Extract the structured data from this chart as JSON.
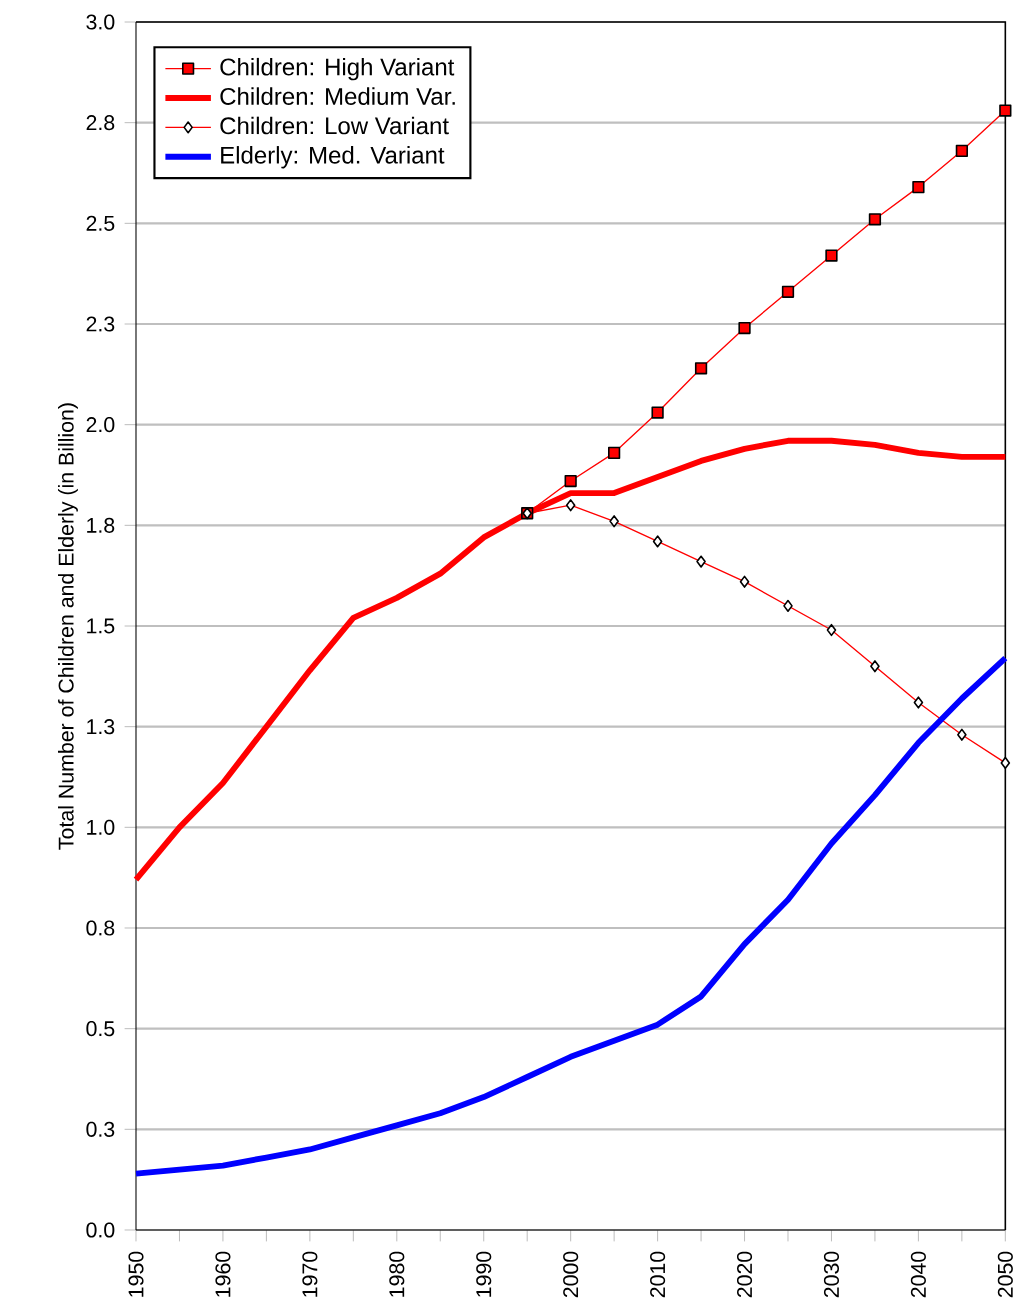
{
  "chart_data": {
    "type": "line",
    "ylabel": "Total Number of Children and Elderly (in Billion)",
    "xlim": [
      1950,
      2050
    ],
    "ylim": [
      0,
      3
    ],
    "xticks": [
      1950,
      {
        "value": 1955,
        "label": null
      },
      1960,
      {
        "value": 1965,
        "label": null
      },
      1970,
      {
        "value": 1975,
        "label": null
      },
      1980,
      {
        "value": 1985,
        "label": null
      },
      1990,
      {
        "value": 1995,
        "label": null
      },
      2000,
      {
        "value": 2005,
        "label": null
      },
      2010,
      {
        "value": 2015,
        "label": null
      },
      2020,
      {
        "value": 2025,
        "label": null
      },
      2030,
      {
        "value": 2035,
        "label": null
      },
      2040,
      {
        "value": 2045,
        "label": null
      },
      2050
    ],
    "yticks": [
      {
        "value": 0,
        "label": "0.0"
      },
      {
        "value": 0.25,
        "label": "0.3"
      },
      {
        "value": 0.5,
        "label": "0.5"
      },
      {
        "value": 0.75,
        "label": "0.8"
      },
      {
        "value": 1.0,
        "label": "1.0"
      },
      {
        "value": 1.25,
        "label": "1.3"
      },
      {
        "value": 1.5,
        "label": "1.5"
      },
      {
        "value": 1.75,
        "label": "1.8"
      },
      {
        "value": 2.0,
        "label": "2.0"
      },
      {
        "value": 2.25,
        "label": "2.3"
      },
      {
        "value": 2.5,
        "label": "2.5"
      },
      {
        "value": 2.75,
        "label": "2.8"
      },
      {
        "value": 3.0,
        "label": "3.0"
      }
    ],
    "grid": "y",
    "legend": "top left",
    "series": [
      {
        "name": "Children: High Variant",
        "color": "#ff0000",
        "marker": "square",
        "x": [
          1995,
          2000,
          2005,
          2010,
          2015,
          2020,
          2025,
          2030,
          2035,
          2040,
          2045,
          2050
        ],
        "values": [
          1.78,
          1.86,
          1.93,
          2.03,
          2.14,
          2.24,
          2.33,
          2.42,
          2.51,
          2.59,
          2.68,
          2.78
        ]
      },
      {
        "name": "Children: Medium Var.",
        "color": "#ff0000",
        "marker": "none",
        "x": [
          1950,
          1955,
          1960,
          1965,
          1970,
          1975,
          1980,
          1985,
          1990,
          1995,
          2000,
          2005,
          2010,
          2015,
          2020,
          2025,
          2030,
          2035,
          2040,
          2045,
          2050
        ],
        "values": [
          0.87,
          1.0,
          1.11,
          1.25,
          1.39,
          1.52,
          1.57,
          1.63,
          1.72,
          1.78,
          1.83,
          1.83,
          1.87,
          1.91,
          1.94,
          1.96,
          1.96,
          1.95,
          1.93,
          1.92,
          1.92
        ]
      },
      {
        "name": "Children: Low Variant",
        "color": "#ff0000",
        "marker": "diamond",
        "x": [
          1995,
          2000,
          2005,
          2010,
          2015,
          2020,
          2025,
          2030,
          2035,
          2040,
          2045,
          2050
        ],
        "values": [
          1.78,
          1.8,
          1.76,
          1.71,
          1.66,
          1.61,
          1.55,
          1.49,
          1.4,
          1.31,
          1.23,
          1.16
        ]
      },
      {
        "name": "Elderly: Med. Variant",
        "color": "#0000ff",
        "marker": "none",
        "x": [
          1950,
          1955,
          1960,
          1965,
          1970,
          1975,
          1980,
          1985,
          1990,
          1995,
          2000,
          2005,
          2010,
          2015,
          2020,
          2025,
          2030,
          2035,
          2040,
          2045,
          2050
        ],
        "values": [
          0.14,
          0.15,
          0.16,
          0.18,
          0.2,
          0.23,
          0.26,
          0.29,
          0.33,
          0.38,
          0.43,
          0.47,
          0.51,
          0.58,
          0.71,
          0.82,
          0.96,
          1.08,
          1.21,
          1.32,
          1.42
        ]
      }
    ]
  }
}
